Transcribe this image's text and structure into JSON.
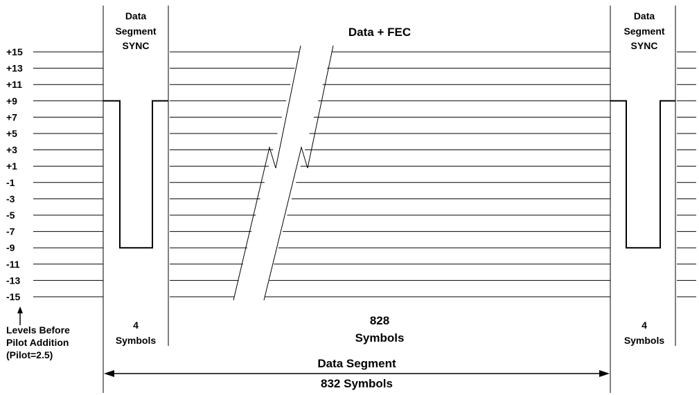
{
  "levels": [
    "+15",
    "+13",
    "+11",
    "+9",
    "+7",
    "+5",
    "+3",
    "+1",
    "-1",
    "-3",
    "-5",
    "-7",
    "-9",
    "-11",
    "-13",
    "-15"
  ],
  "left_sync": {
    "title_lines": [
      "Data",
      "Segment",
      "SYNC"
    ],
    "count": "4",
    "unit": "Symbols"
  },
  "right_sync": {
    "title_lines": [
      "Data",
      "Segment",
      "SYNC"
    ],
    "count": "4",
    "unit": "Symbols"
  },
  "data_fec": {
    "title": "Data + FEC",
    "count": "828",
    "unit": "Symbols"
  },
  "levels_note": [
    "Levels Before",
    "Pilot Addition",
    "(Pilot=2.5)"
  ],
  "segment": {
    "label": "Data Segment",
    "length": "832 Symbols"
  },
  "sync_pattern": {
    "high_level": 9,
    "low_level": -9
  },
  "colors": {
    "line": "#000000",
    "background": "#ffffff"
  }
}
